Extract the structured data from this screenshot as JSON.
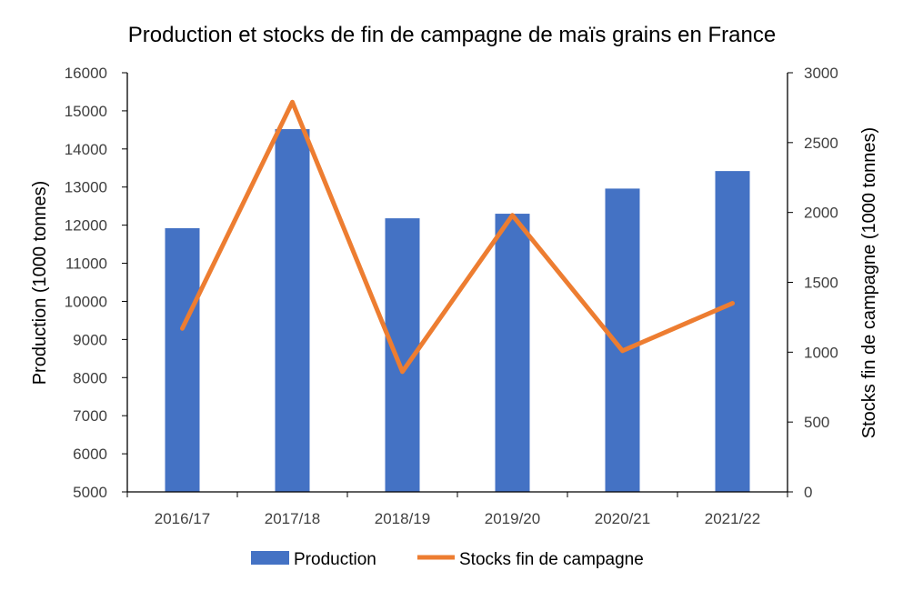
{
  "chart_data": {
    "type": "bar+line",
    "title": "Production et stocks de fin de campagne de maïs grains en France",
    "categories": [
      "2016/17",
      "2017/18",
      "2018/19",
      "2019/20",
      "2020/21",
      "2021/22"
    ],
    "series": [
      {
        "name": "Production",
        "type": "bar",
        "axis": "left",
        "color": "#4472C4",
        "values": [
          11920,
          14520,
          12180,
          12300,
          12960,
          13420
        ]
      },
      {
        "name": "Stocks fin de campagne",
        "type": "line",
        "axis": "right",
        "color": "#ED7D31",
        "values": [
          1170,
          2790,
          860,
          1980,
          1010,
          1350
        ]
      }
    ],
    "y_left": {
      "label": "Production (1000 tonnes)",
      "min": 5000,
      "max": 16000,
      "ticks": [
        "5000",
        "6000",
        "7000",
        "8000",
        "9000",
        "10000",
        "11000",
        "12000",
        "13000",
        "14000",
        "15000",
        "16000"
      ]
    },
    "y_right": {
      "label": "Stocks  fin de campagne (1000 tonnes)",
      "min": 0,
      "max": 3000,
      "ticks": [
        "0",
        "500",
        "1000",
        "1500",
        "2000",
        "2500",
        "3000"
      ]
    },
    "grid": false,
    "legend_position": "bottom"
  }
}
